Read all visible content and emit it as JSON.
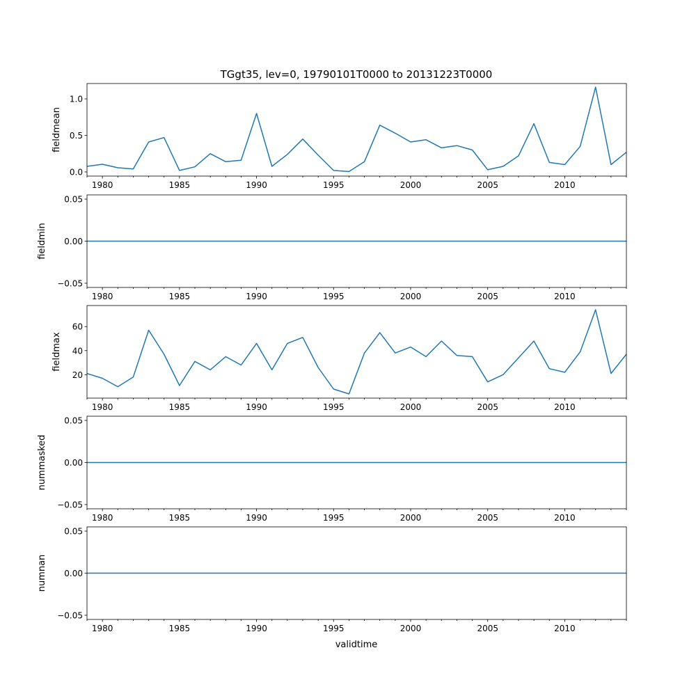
{
  "chart_data": {
    "type": "line",
    "title": "TGgt35, lev=0, 19790101T0000 to 20131223T0000",
    "xlabel": "validtime",
    "xlim": [
      1979,
      2014
    ],
    "x": [
      1979,
      1980,
      1981,
      1982,
      1983,
      1984,
      1985,
      1986,
      1987,
      1988,
      1989,
      1990,
      1991,
      1992,
      1993,
      1994,
      1995,
      1996,
      1997,
      1998,
      1999,
      2000,
      2001,
      2002,
      2003,
      2004,
      2005,
      2006,
      2007,
      2008,
      2009,
      2010,
      2011,
      2012,
      2013,
      2014
    ],
    "x_tick_labels": [
      "1980",
      "1985",
      "1990",
      "1995",
      "2000",
      "2005",
      "2010"
    ],
    "line_color": "#1f77b4",
    "panels": [
      {
        "ylabel": "fieldmean",
        "ylim": [
          -0.057,
          1.21
        ],
        "y_ticks": [
          0.0,
          0.5,
          1.0
        ],
        "y_tick_labels": [
          "0.0",
          "0.5",
          "1.0"
        ],
        "values": [
          0.076,
          0.105,
          0.057,
          0.04,
          0.41,
          0.47,
          0.02,
          0.07,
          0.25,
          0.14,
          0.16,
          0.8,
          0.076,
          0.24,
          0.45,
          0.23,
          0.02,
          0.005,
          0.14,
          0.64,
          0.53,
          0.41,
          0.44,
          0.33,
          0.36,
          0.3,
          0.03,
          0.076,
          0.22,
          0.66,
          0.13,
          0.1,
          0.35,
          1.16,
          0.1,
          0.27
        ]
      },
      {
        "ylabel": "fieldmin",
        "ylim": [
          -0.055,
          0.055
        ],
        "y_ticks": [
          -0.05,
          0.0,
          0.05
        ],
        "y_tick_labels": [
          "−0.05",
          "0.00",
          "0.05"
        ],
        "values": [
          0,
          0,
          0,
          0,
          0,
          0,
          0,
          0,
          0,
          0,
          0,
          0,
          0,
          0,
          0,
          0,
          0,
          0,
          0,
          0,
          0,
          0,
          0,
          0,
          0,
          0,
          0,
          0,
          0,
          0,
          0,
          0,
          0,
          0,
          0,
          0
        ]
      },
      {
        "ylabel": "fieldmax",
        "ylim": [
          0.5,
          77.5
        ],
        "y_ticks": [
          20,
          40,
          60
        ],
        "y_tick_labels": [
          "20",
          "40",
          "60"
        ],
        "values": [
          21,
          17,
          10,
          18,
          57,
          37,
          11,
          31,
          24,
          35,
          28,
          46,
          24,
          46,
          51,
          26,
          8,
          4,
          38,
          55,
          38,
          43,
          35,
          48,
          36,
          35,
          14,
          20,
          34,
          48,
          25,
          22,
          39,
          74,
          21,
          37
        ]
      },
      {
        "ylabel": "nummasked",
        "ylim": [
          -0.055,
          0.055
        ],
        "y_ticks": [
          -0.05,
          0.0,
          0.05
        ],
        "y_tick_labels": [
          "−0.05",
          "0.00",
          "0.05"
        ],
        "values": [
          0,
          0,
          0,
          0,
          0,
          0,
          0,
          0,
          0,
          0,
          0,
          0,
          0,
          0,
          0,
          0,
          0,
          0,
          0,
          0,
          0,
          0,
          0,
          0,
          0,
          0,
          0,
          0,
          0,
          0,
          0,
          0,
          0,
          0,
          0,
          0
        ]
      },
      {
        "ylabel": "numnan",
        "ylim": [
          -0.055,
          0.055
        ],
        "y_ticks": [
          -0.05,
          0.0,
          0.05
        ],
        "y_tick_labels": [
          "−0.05",
          "0.00",
          "0.05"
        ],
        "values": [
          0,
          0,
          0,
          0,
          0,
          0,
          0,
          0,
          0,
          0,
          0,
          0,
          0,
          0,
          0,
          0,
          0,
          0,
          0,
          0,
          0,
          0,
          0,
          0,
          0,
          0,
          0,
          0,
          0,
          0,
          0,
          0,
          0,
          0,
          0,
          0
        ]
      }
    ]
  }
}
